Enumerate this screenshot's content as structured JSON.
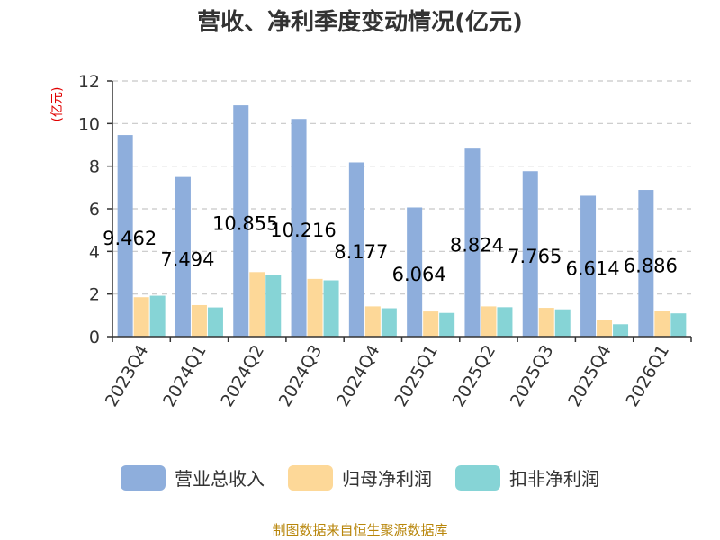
{
  "chart_data": {
    "type": "bar",
    "title": "营收、净利季度变动情况(亿元)",
    "unit_label": "(亿元)",
    "categories": [
      "2023Q4",
      "2024Q1",
      "2024Q2",
      "2024Q3",
      "2024Q4",
      "2025Q1",
      "2025Q2",
      "2025Q3",
      "2025Q4",
      "2026Q1"
    ],
    "series": [
      {
        "name": "营业总收入",
        "color": "#8eaedc",
        "values": [
          9.462,
          7.494,
          10.855,
          10.216,
          8.177,
          6.064,
          8.824,
          7.765,
          6.614,
          6.886
        ],
        "labels": [
          "9.462",
          "7.494",
          "10.855",
          "10.216",
          "8.177",
          "6.064",
          "8.824",
          "7.765",
          "6.614",
          "6.886"
        ]
      },
      {
        "name": "归母净利润",
        "color": "#fdd898",
        "values": [
          1.85,
          1.48,
          3.03,
          2.71,
          1.42,
          1.18,
          1.42,
          1.35,
          0.78,
          1.22
        ]
      },
      {
        "name": "扣非净利润",
        "color": "#86d4d6",
        "values": [
          1.92,
          1.37,
          2.89,
          2.64,
          1.33,
          1.11,
          1.38,
          1.28,
          0.58,
          1.09
        ]
      }
    ],
    "ylim": [
      0,
      12
    ],
    "yticks": [
      0,
      2,
      4,
      6,
      8,
      10,
      12
    ],
    "grid": true,
    "legend": "bottom"
  },
  "source_note": "制图数据来自恒生聚源数据库"
}
